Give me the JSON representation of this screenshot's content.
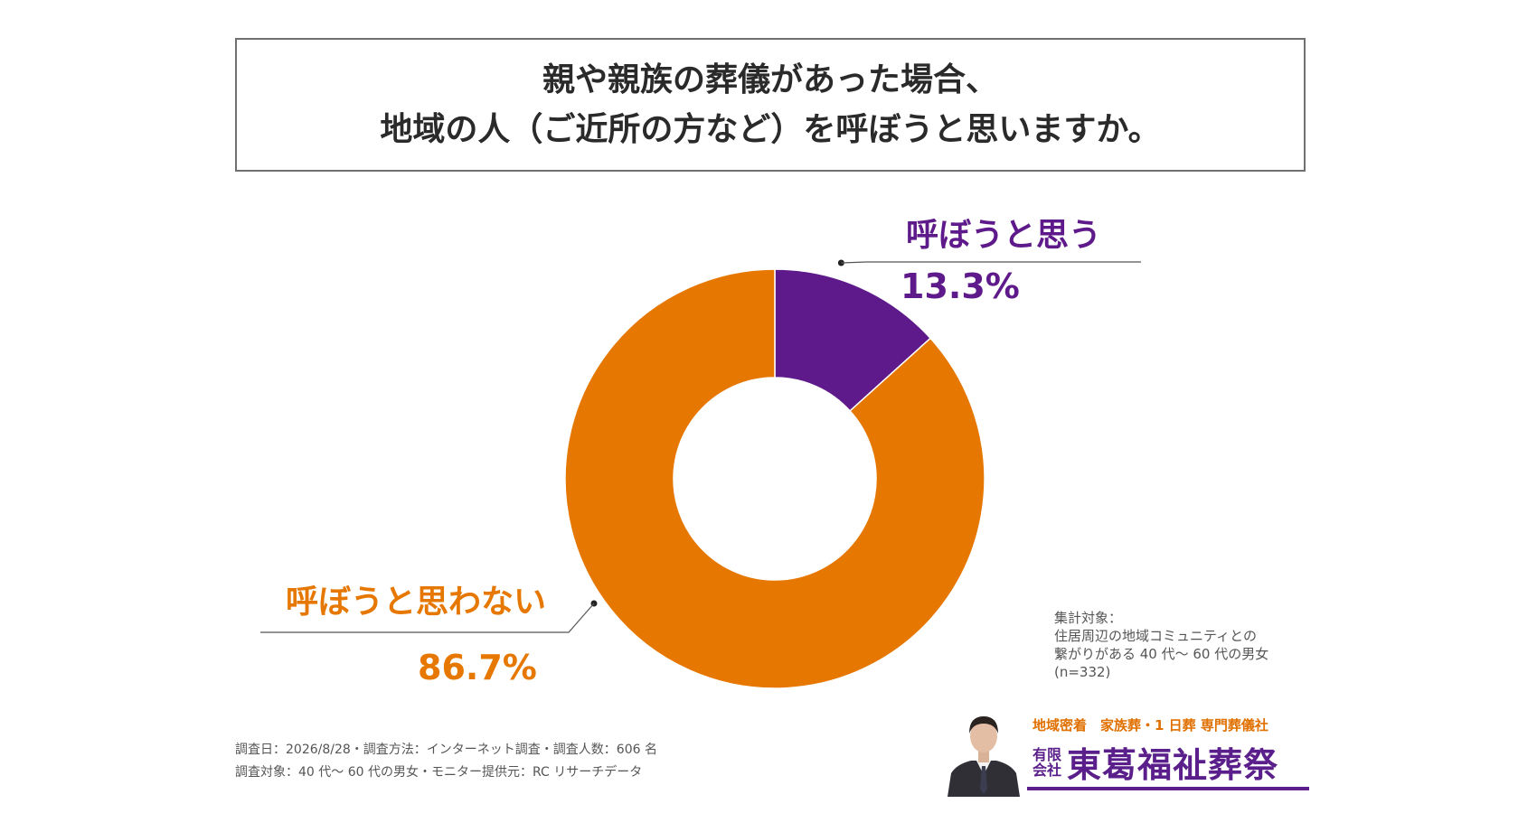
{
  "header": {
    "title_line1": "親や親族の葬儀があった場合、",
    "title_line2": "地域の人（ご近所の方など）を呼ぼうと思いますか。"
  },
  "chart_data": {
    "type": "pie",
    "title": "親や親族の葬儀があった場合、地域の人（ご近所の方など）を呼ぼうと思いますか。",
    "donut": true,
    "slices": [
      {
        "label": "呼ぼうと思う",
        "value": 13.3,
        "value_label": "13.3%",
        "color": "#5e1a8a"
      },
      {
        "label": "呼ぼうと思わない",
        "value": 86.7,
        "value_label": "86.7%",
        "color": "#e67700"
      }
    ]
  },
  "notes": {
    "line1": "集計対象：",
    "line2": "住居周辺の地域コミュニティとの",
    "line3": "繋がりがある 40 代〜 60 代の男女",
    "line4": "(n=332)"
  },
  "footer": {
    "line1": "調査日：2026/8/28・調査方法：インターネット調査・調査人数：606 名",
    "line2": "調査対象：40 代〜 60 代の男女・モニター提供元：RC リサーチデータ"
  },
  "brand": {
    "tagline": "地域密着　家族葬・1 日葬 専門葬儀社",
    "company_type_line1": "有限",
    "company_type_line2": "会社",
    "company_name": "東葛福祉葬祭"
  }
}
